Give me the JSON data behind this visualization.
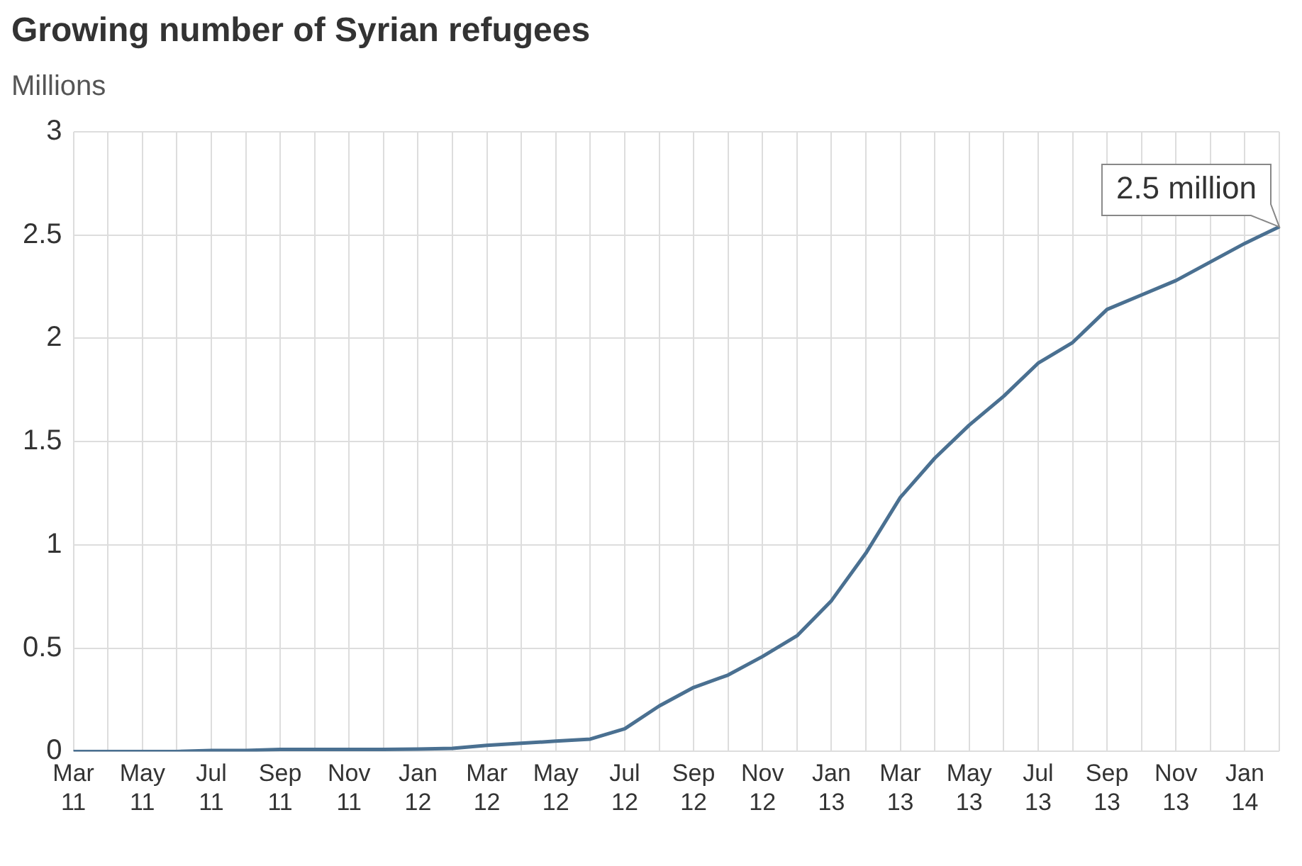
{
  "chart_data": {
    "type": "line",
    "title": "Growing number of Syrian refugees",
    "ylabel": "Millions",
    "categories": [
      "Mar 11",
      null,
      "May 11",
      null,
      "Jul 11",
      null,
      "Sep 11",
      null,
      "Nov 11",
      null,
      "Jan 12",
      null,
      "Mar 12",
      null,
      "May 12",
      null,
      "Jul 12",
      null,
      "Sep 12",
      null,
      "Nov 12",
      null,
      "Jan 13",
      null,
      "Mar 13",
      null,
      "May 13",
      null,
      "Jul 13",
      null,
      "Sep 13",
      null,
      "Nov 13",
      null,
      "Jan 14",
      null
    ],
    "series": [
      {
        "color": "#4a7091",
        "values": [
          0,
          0,
          0,
          0,
          0.005,
          0.005,
          0.01,
          0.01,
          0.01,
          0.01,
          0.012,
          0.015,
          0.03,
          0.04,
          0.05,
          0.06,
          0.11,
          0.22,
          0.31,
          0.37,
          0.46,
          0.56,
          0.73,
          0.96,
          1.23,
          1.42,
          1.58,
          1.72,
          1.88,
          1.98,
          2.14,
          2.21,
          2.28,
          2.37,
          2.46,
          2.54
        ]
      }
    ],
    "ylim": [
      0,
      3
    ],
    "yticks": [
      0,
      0.5,
      1,
      1.5,
      2,
      2.5,
      3
    ],
    "grid": true,
    "legend": false,
    "marker": "none",
    "line_style": "solid",
    "annotations": [
      "2.5 million"
    ]
  }
}
